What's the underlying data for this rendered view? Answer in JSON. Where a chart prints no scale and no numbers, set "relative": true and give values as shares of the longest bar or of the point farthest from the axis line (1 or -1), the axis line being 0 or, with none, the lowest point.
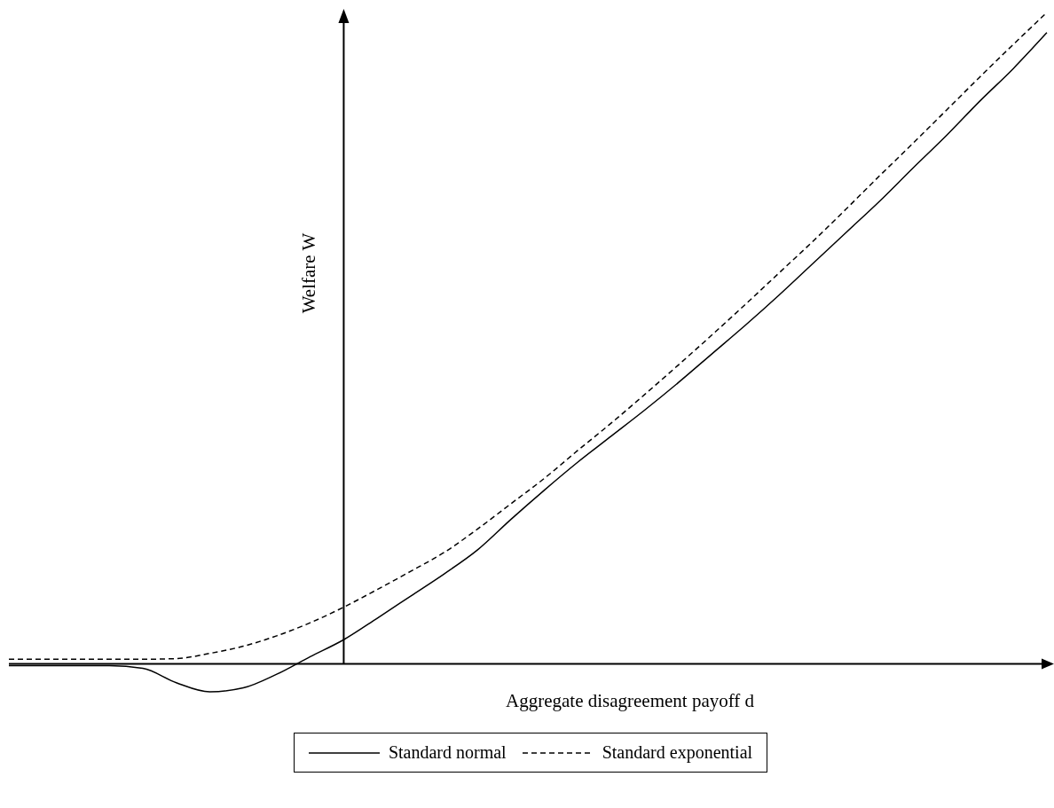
{
  "chart_data": {
    "type": "line",
    "relative": true,
    "xlabel": "Aggregate disagreement payoff d",
    "ylabel": "Welfare W",
    "legend": "bottom",
    "marker": "none",
    "categories": [
      null,
      null,
      null,
      null,
      null,
      null,
      null,
      null,
      null,
      null,
      null,
      null,
      null,
      null,
      null,
      null,
      null,
      null,
      null,
      null,
      null,
      null,
      null,
      null,
      null,
      null,
      null,
      null,
      null,
      null,
      null,
      null
    ],
    "series": [
      {
        "name": "Standard normal",
        "color": "#000000",
        "line_style": "solid",
        "values": [
          -0.003,
          -0.003,
          -0.003,
          -0.003,
          -0.007,
          -0.029,
          -0.043,
          -0.037,
          -0.016,
          0.011,
          0.037,
          0.07,
          0.104,
          0.138,
          0.175,
          0.222,
          0.267,
          0.31,
          0.35,
          0.39,
          0.432,
          0.476,
          0.52,
          0.566,
          0.614,
          0.662,
          0.71,
          0.761,
          0.811,
          0.864,
          0.914,
          0.969
        ]
      },
      {
        "name": "Standard exponential",
        "color": "#000000",
        "line_style": "dashed",
        "values": [
          0.007,
          0.007,
          0.007,
          0.007,
          0.007,
          0.008,
          0.016,
          0.027,
          0.043,
          0.063,
          0.087,
          0.114,
          0.142,
          0.171,
          0.207,
          0.246,
          0.285,
          0.328,
          0.37,
          0.414,
          0.459,
          0.505,
          0.552,
          0.6,
          0.648,
          0.698,
          0.749,
          0.799,
          0.85,
          0.901,
          0.951,
          1
        ]
      }
    ]
  }
}
